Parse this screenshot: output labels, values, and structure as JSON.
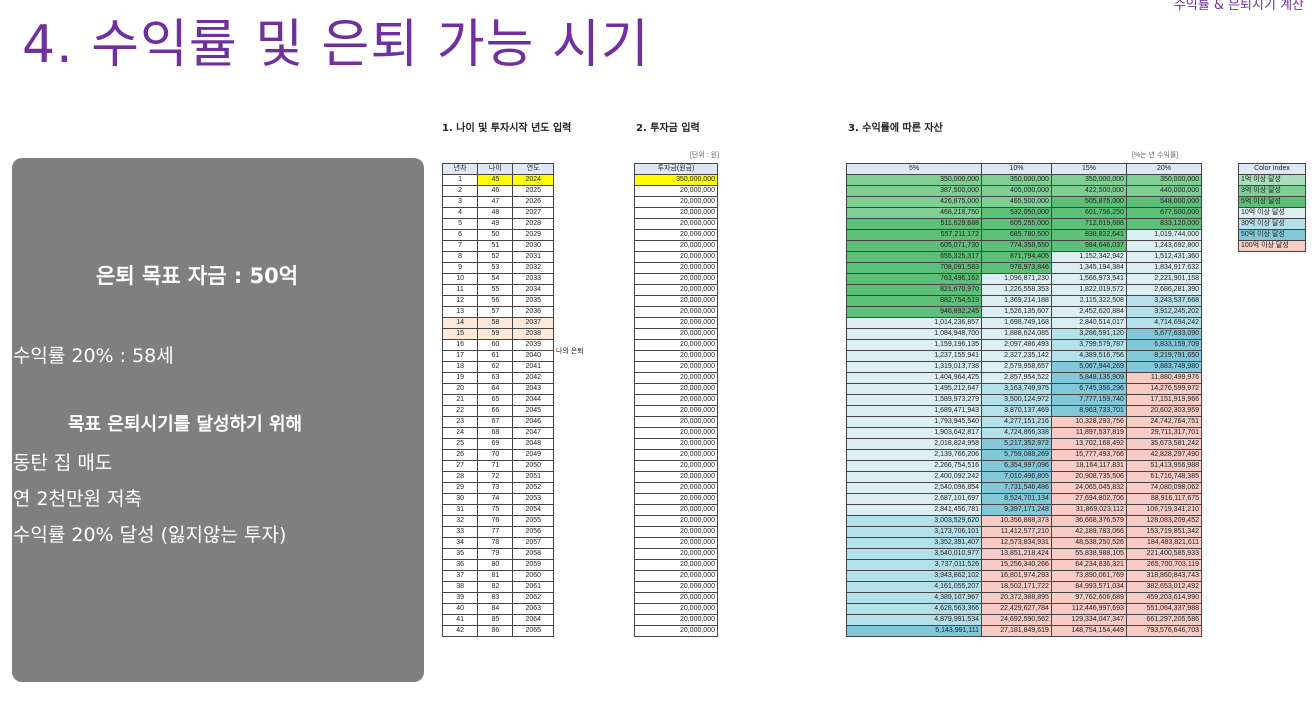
{
  "title": "4. 수익률 및 은퇴 가능 시기",
  "corner_label": "수익률 & 은퇴시기 계산",
  "sections": {
    "s1": "1. 나이 및 투자시작 년도 입력",
    "s2": "2. 투자금 입력",
    "s3": "3. 수익률에 따른 자산"
  },
  "summary": {
    "goal": "은퇴 목표 자금 : 50억",
    "rate_line": "- 수익률 20% : 58세",
    "heading": "목표 은퇴시기를 달성하기 위해",
    "item1": "- 동탄 집 매도",
    "item2": "- 연 2천만원 저축",
    "item3": " - 수익률 20% 달성 (잃지않는 투자)"
  },
  "table1": {
    "headers": [
      "년차",
      "나이",
      "연도"
    ],
    "highlight_rows": [
      14,
      15
    ],
    "retire_note": "나의 은퇴"
  },
  "table2": {
    "unit": "[단위 : 원]",
    "header": "투자금(원금)",
    "first": "350,000,000",
    "rest": "20,000,000"
  },
  "table3": {
    "unit_note": "[%는 년 수익률]",
    "headers": [
      "5%",
      "10%",
      "15%",
      "20%"
    ],
    "rows": [
      [
        "350,000,000",
        "350,000,000",
        "350,000,000",
        "350,000,000"
      ],
      [
        "387,500,000",
        "405,000,000",
        "422,500,000",
        "440,000,000"
      ],
      [
        "426,875,000",
        "465,500,000",
        "505,875,000",
        "548,000,000"
      ],
      [
        "468,218,750",
        "532,050,000",
        "601,756,250",
        "677,600,000"
      ],
      [
        "511,629,688",
        "605,255,000",
        "712,019,688",
        "833,120,000"
      ],
      [
        "557,211,172",
        "685,780,500",
        "838,822,641",
        "1,019,744,000"
      ],
      [
        "605,071,730",
        "774,358,550",
        "984,646,037",
        "1,243,692,800"
      ],
      [
        "655,325,317",
        "871,794,405",
        "1,152,342,942",
        "1,512,431,360"
      ],
      [
        "708,091,583",
        "978,973,846",
        "1,345,194,384",
        "1,834,917,632"
      ],
      [
        "763,496,162",
        "1,096,871,230",
        "1,566,973,541",
        "2,221,901,158"
      ],
      [
        "821,670,970",
        "1,226,558,353",
        "1,822,019,572",
        "2,686,281,390"
      ],
      [
        "882,754,519",
        "1,369,214,188",
        "2,115,322,508",
        "3,243,537,668"
      ],
      [
        "946,892,245",
        "1,526,135,607",
        "2,452,620,884",
        "3,912,245,202"
      ],
      [
        "1,014,236,857",
        "1,698,749,168",
        "2,840,514,017",
        "4,714,694,242"
      ],
      [
        "1,084,948,700",
        "1,888,624,085",
        "3,286,591,120",
        "5,677,633,090"
      ],
      [
        "1,159,196,135",
        "2,097,486,493",
        "3,799,579,787",
        "6,833,159,709"
      ],
      [
        "1,237,155,941",
        "2,327,235,142",
        "4,389,516,756",
        "8,219,791,650"
      ],
      [
        "1,319,013,738",
        "2,579,958,657",
        "5,067,944,269",
        "9,883,749,980"
      ],
      [
        "1,404,964,425",
        "2,857,954,522",
        "5,848,135,909",
        "11,880,499,976"
      ],
      [
        "1,495,212,647",
        "3,163,749,975",
        "6,745,356,296",
        "14,276,599,972"
      ],
      [
        "1,589,973,279",
        "3,500,124,972",
        "7,777,159,740",
        "17,151,919,966"
      ],
      [
        "1,689,471,943",
        "3,870,137,469",
        "8,963,733,701",
        "20,602,303,959"
      ],
      [
        "1,793,945,540",
        "4,277,151,216",
        "10,328,293,756",
        "24,742,764,751"
      ],
      [
        "1,903,642,817",
        "4,724,866,338",
        "11,897,537,819",
        "29,711,317,701"
      ],
      [
        "2,018,824,958",
        "5,217,352,972",
        "13,702,168,492",
        "35,673,581,242"
      ],
      [
        "2,139,766,206",
        "5,759,088,269",
        "15,777,493,766",
        "42,828,297,490"
      ],
      [
        "2,266,754,516",
        "6,354,997,096",
        "18,164,117,831",
        "51,413,956,988"
      ],
      [
        "2,400,092,242",
        "7,010,496,805",
        "20,908,735,506",
        "61,716,748,385"
      ],
      [
        "2,540,096,854",
        "7,731,546,486",
        "24,065,045,832",
        "74,080,098,062"
      ],
      [
        "2,687,101,697",
        "8,524,701,134",
        "27,694,802,706",
        "88,916,117,675"
      ],
      [
        "2,841,456,781",
        "9,397,171,248",
        "31,869,023,112",
        "106,719,341,210"
      ],
      [
        "3,003,529,620",
        "10,356,888,373",
        "36,668,376,579",
        "128,083,209,452"
      ],
      [
        "3,173,706,101",
        "11,412,577,210",
        "42,189,783,066",
        "153,719,851,342"
      ],
      [
        "3,352,391,407",
        "12,573,834,931",
        "48,538,250,526",
        "184,483,821,611"
      ],
      [
        "3,540,010,977",
        "13,851,218,424",
        "55,838,988,105",
        "221,400,585,933"
      ],
      [
        "3,737,011,526",
        "15,256,340,266",
        "64,234,836,321",
        "265,700,703,119"
      ],
      [
        "3,943,862,102",
        "16,801,974,293",
        "73,890,061,769",
        "318,860,843,743"
      ],
      [
        "4,161,055,207",
        "18,502,171,722",
        "84,993,571,034",
        "382,653,012,492"
      ],
      [
        "4,389,107,967",
        "20,372,388,895",
        "97,762,606,689",
        "459,203,614,990"
      ],
      [
        "4,628,563,366",
        "22,429,627,784",
        "112,446,997,693",
        "551,064,337,988"
      ],
      [
        "4,879,991,534",
        "24,692,590,562",
        "129,334,047,347",
        "661,297,205,586"
      ],
      [
        "5,143,991,111",
        "27,181,849,619",
        "148,754,154,449",
        "793,576,646,703"
      ]
    ]
  },
  "color_index": {
    "header": "Color Index",
    "items": [
      {
        "label": "1억 이상 달성",
        "color": "#a9dcb8"
      },
      {
        "label": "3억 이상 달성",
        "color": "#7fcf95"
      },
      {
        "label": "5억 이상 달성",
        "color": "#5ebf78"
      },
      {
        "label": "10억 이상 달성",
        "color": "#dbeef2"
      },
      {
        "label": "30억 이상 달성",
        "color": "#b4e0ea"
      },
      {
        "label": "50억 이상 달성",
        "color": "#82c8d8"
      },
      {
        "label": "100억 이상 달성",
        "color": "#f8cbc4"
      }
    ]
  }
}
